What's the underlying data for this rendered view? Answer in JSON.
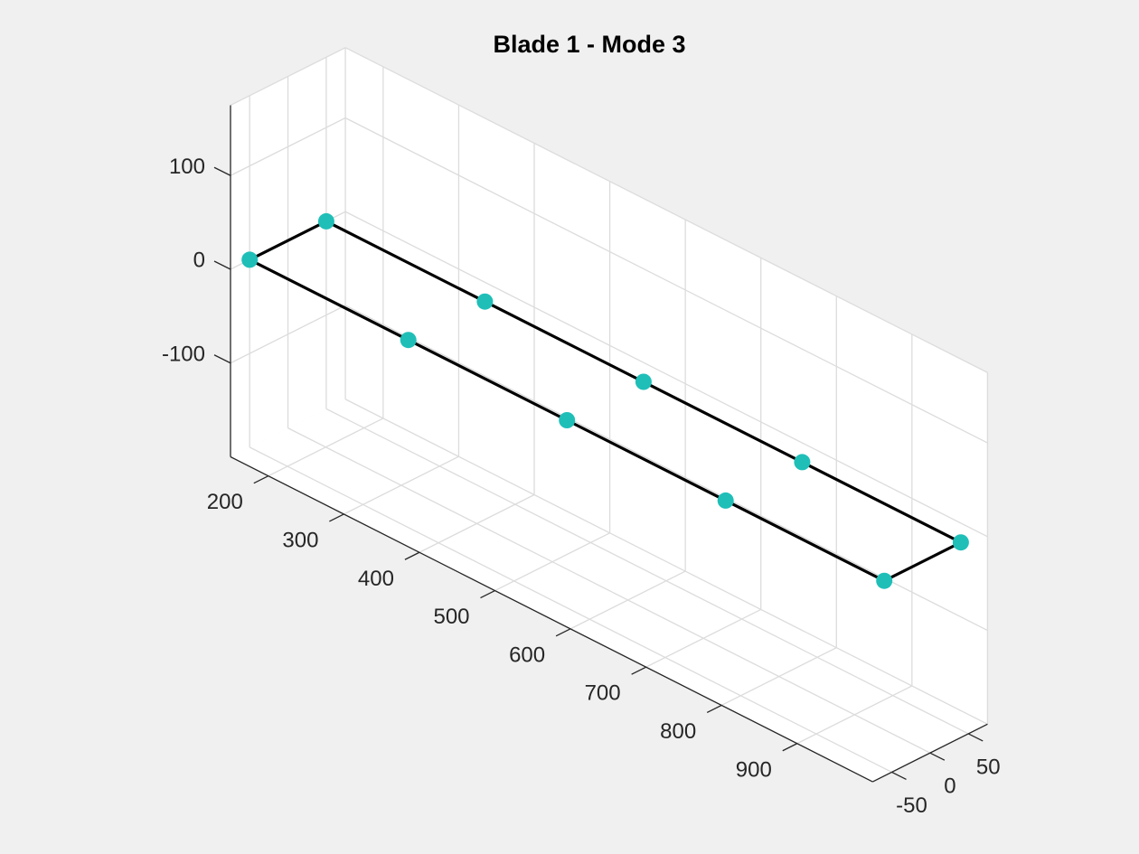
{
  "chart_data": {
    "type": "scatter",
    "title": "Blade 1 - Mode 3",
    "xlabel": "",
    "ylabel": "",
    "zlabel": "",
    "view": "3d",
    "grid": true,
    "xlim": [
      150,
      1000
    ],
    "ylim": [
      -75,
      75
    ],
    "zlim": [
      -200,
      175
    ],
    "xticks": [
      200,
      300,
      400,
      500,
      600,
      700,
      800,
      900
    ],
    "yticks": [
      -50,
      0,
      50
    ],
    "zticks": [
      -100,
      0,
      100
    ],
    "points": [
      {
        "x": 150,
        "y": -50,
        "z": 0
      },
      {
        "x": 150,
        "y": 50,
        "z": 0
      },
      {
        "x": 360,
        "y": -50,
        "z": 0
      },
      {
        "x": 360,
        "y": 50,
        "z": 0
      },
      {
        "x": 570,
        "y": -50,
        "z": 0
      },
      {
        "x": 570,
        "y": 50,
        "z": 0
      },
      {
        "x": 780,
        "y": -50,
        "z": 0
      },
      {
        "x": 780,
        "y": 50,
        "z": 0
      },
      {
        "x": 990,
        "y": -50,
        "z": 0
      },
      {
        "x": 990,
        "y": 50,
        "z": 0
      }
    ],
    "outline": [
      {
        "x": 150,
        "y": -50,
        "z": 0
      },
      {
        "x": 990,
        "y": -50,
        "z": 0
      },
      {
        "x": 990,
        "y": 50,
        "z": 0
      },
      {
        "x": 150,
        "y": 50,
        "z": 0
      },
      {
        "x": 150,
        "y": -50,
        "z": 0
      }
    ],
    "marker_color": "#1fbfb8",
    "line_color": "#000000"
  }
}
